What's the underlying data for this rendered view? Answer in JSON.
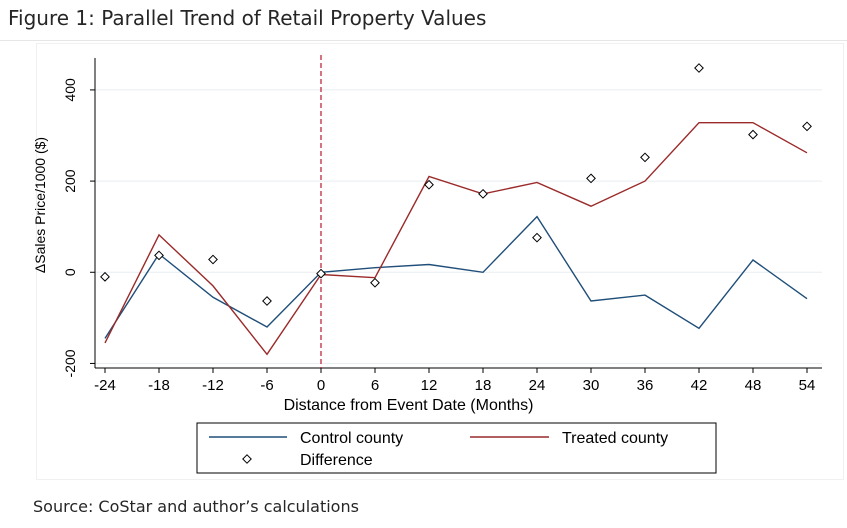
{
  "figure": {
    "title": "Figure 1: Parallel Trend of Retail Property Values",
    "source": "Source: CoStar and author’s calculations"
  },
  "colors": {
    "control": "#1f4e79",
    "treated": "#9b2a2a",
    "event_line": "#c0283a",
    "grid": "#e8eef2",
    "axis": "#000000"
  },
  "chart_data": {
    "type": "line",
    "title": "",
    "xlabel": "Distance from Event Date (Months)",
    "ylabel": "ΔSales Price/1000 ($)",
    "xlim": [
      -24,
      54
    ],
    "ylim": [
      -210,
      470
    ],
    "x_ticks": [
      -24,
      -18,
      -12,
      -6,
      0,
      6,
      12,
      18,
      24,
      30,
      36,
      42,
      48,
      54
    ],
    "y_ticks": [
      -200,
      0,
      200,
      400
    ],
    "grid": true,
    "event_line_x": 0,
    "legend_position": "bottom",
    "x": [
      -24,
      -18,
      -12,
      -6,
      0,
      6,
      12,
      18,
      24,
      30,
      36,
      42,
      48,
      54
    ],
    "series": [
      {
        "name": "Control county",
        "style": "line",
        "values": [
          -145,
          40,
          -55,
          -120,
          0,
          10,
          17,
          0,
          122,
          -63,
          -50,
          -123,
          27,
          -58
        ]
      },
      {
        "name": "Treated county",
        "style": "line",
        "values": [
          -155,
          82,
          -30,
          -180,
          -5,
          -12,
          210,
          172,
          197,
          145,
          200,
          328,
          328,
          262
        ]
      },
      {
        "name": "Difference",
        "style": "marker",
        "values": [
          -10,
          37,
          28,
          -63,
          -3,
          -23,
          192,
          172,
          76,
          206,
          252,
          448,
          302,
          320
        ]
      }
    ]
  }
}
